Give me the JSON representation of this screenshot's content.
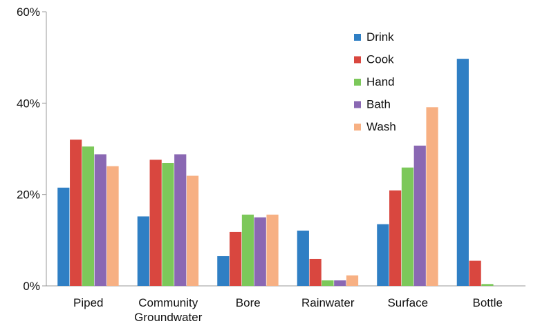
{
  "chart_data": {
    "type": "bar",
    "categories": [
      "Piped",
      "Community\nGroundwater",
      "Bore",
      "Rainwater",
      "Surface",
      "Bottle"
    ],
    "series": [
      {
        "name": "Drink",
        "color": "#2f7fc4",
        "values": [
          21.5,
          15.2,
          6.5,
          12.1,
          13.5,
          49.7
        ]
      },
      {
        "name": "Cook",
        "color": "#d9473f",
        "values": [
          32.0,
          27.6,
          11.8,
          5.9,
          20.9,
          5.5
        ]
      },
      {
        "name": "Hand",
        "color": "#7cc85a",
        "values": [
          30.5,
          26.9,
          15.6,
          1.2,
          25.9,
          0.4
        ]
      },
      {
        "name": "Bath",
        "color": "#8a68b3",
        "values": [
          28.8,
          28.8,
          15.0,
          1.2,
          30.7,
          0.0
        ]
      },
      {
        "name": "Wash",
        "color": "#f7b083",
        "values": [
          26.2,
          24.1,
          15.6,
          2.3,
          39.1,
          0.0
        ]
      }
    ],
    "yticks": [
      "0%",
      "20%",
      "40%",
      "60%"
    ],
    "ylim": [
      0,
      60
    ],
    "legend_position": "top-right",
    "grid": false
  }
}
